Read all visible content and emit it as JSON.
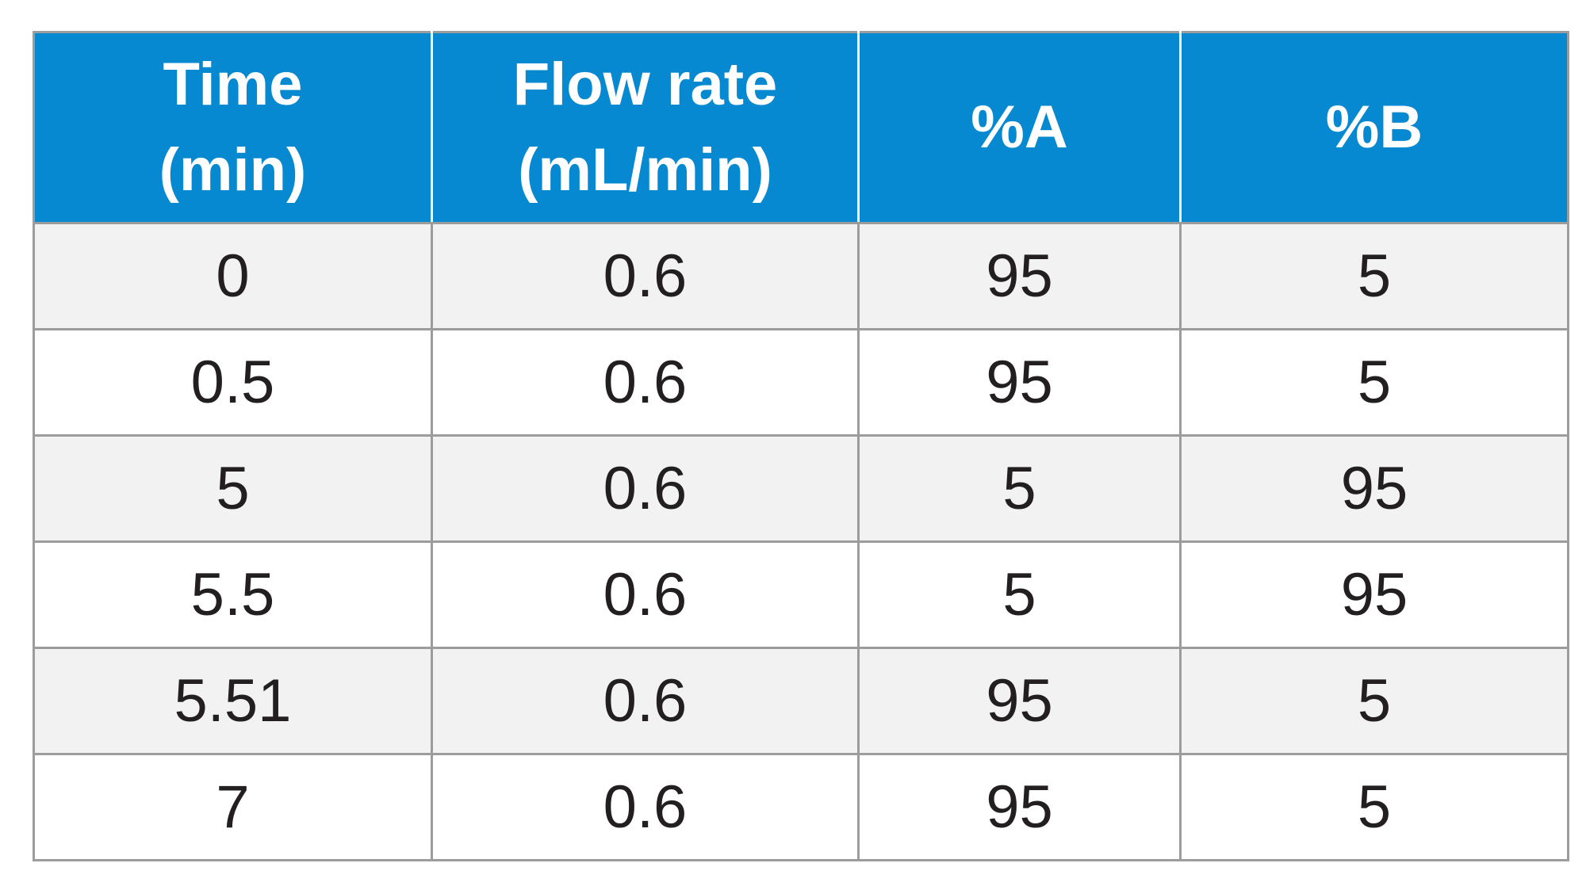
{
  "table": {
    "columns": [
      {
        "line1": "Time",
        "line2": "(min)"
      },
      {
        "line1": "Flow rate",
        "line2": "(mL/min)"
      },
      {
        "line1": "%A",
        "line2": ""
      },
      {
        "line1": "%B",
        "line2": ""
      }
    ],
    "rows": [
      [
        "0",
        "0.6",
        "95",
        "5"
      ],
      [
        "0.5",
        "0.6",
        "95",
        "5"
      ],
      [
        "5",
        "0.6",
        "5",
        "95"
      ],
      [
        "5.5",
        "0.6",
        "5",
        "95"
      ],
      [
        "5.51",
        "0.6",
        "95",
        "5"
      ],
      [
        "7",
        "0.6",
        "95",
        "5"
      ]
    ]
  },
  "colors": {
    "header_bg": "#0689d0",
    "header_text": "#ffffff",
    "row_alt_bg": "#f2f2f3",
    "row_bg": "#ffffff",
    "grid_line": "#9a9c9e",
    "body_text": "#231f20"
  }
}
